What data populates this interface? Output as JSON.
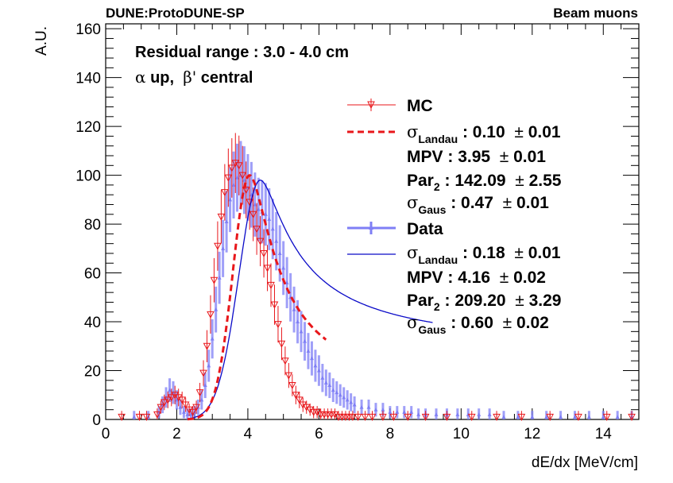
{
  "chart_data": {
    "type": "scatter",
    "header_left": "DUNE:ProtoDUNE-SP",
    "header_right": "Beam muons",
    "ylabel": "A.U.",
    "xlabel": "dE/dx [MeV/cm]",
    "xlim": [
      0,
      15
    ],
    "ylim": [
      0,
      162
    ],
    "grid": false,
    "x_ticks": [
      0,
      2,
      4,
      6,
      8,
      10,
      12,
      14
    ],
    "y_ticks": [
      0,
      20,
      40,
      60,
      80,
      100,
      120,
      140,
      160
    ],
    "annotations": {
      "line1": "Residual range : 3.0 - 4.0 cm",
      "line2_alpha": "α",
      "line2_up": " up,  ",
      "line2_beta": "β'",
      "line2_central": " central"
    },
    "legend": {
      "mc_label": "MC",
      "data_label": "Data",
      "sigma": "σ",
      "landau_sub": "Landau",
      "gaus_sub": "Gaus",
      "mpv": "MPV",
      "par": "Par",
      "par_sub": "2",
      "pm": "±",
      "mc_sigma_landau": "0.10",
      "mc_sigma_landau_err": "0.01",
      "mc_mpv": "3.95",
      "mc_mpv_err": "0.01",
      "mc_par2": "142.09",
      "mc_par2_err": "2.55",
      "mc_sigma_gaus": "0.47",
      "mc_sigma_gaus_err": "0.01",
      "data_sigma_landau": "0.18",
      "data_sigma_landau_err": "0.01",
      "data_mpv": "4.16",
      "data_mpv_err": "0.02",
      "data_par2": "209.20",
      "data_par2_err": "3.29",
      "data_sigma_gaus": "0.60",
      "data_sigma_gaus_err": "0.02"
    },
    "colors": {
      "mc": "#e8171b",
      "data": "#7f7ff5",
      "fit_data": "#0a0ac8",
      "axis": "#000000"
    },
    "series": [
      {
        "name": "MC",
        "x": [
          0.45,
          0.95,
          1.15,
          1.45,
          1.55,
          1.65,
          1.75,
          1.85,
          1.95,
          2.05,
          2.15,
          2.25,
          2.35,
          2.45,
          2.55,
          2.65,
          2.75,
          2.85,
          2.95,
          3.05,
          3.15,
          3.25,
          3.35,
          3.45,
          3.55,
          3.65,
          3.75,
          3.85,
          3.95,
          4.05,
          4.15,
          4.25,
          4.35,
          4.45,
          4.55,
          4.65,
          4.75,
          4.85,
          4.95,
          5.05,
          5.15,
          5.25,
          5.35,
          5.45,
          5.55,
          5.65,
          5.75,
          5.85,
          5.95,
          6.05,
          6.15,
          6.25,
          6.35,
          6.45,
          6.55,
          6.65,
          6.75,
          6.85,
          6.95,
          7.1,
          7.3,
          7.5,
          7.8,
          8.1,
          8.5,
          9.0,
          9.6,
          10.3,
          11.0,
          11.7,
          12.5,
          13.3,
          14.1,
          14.8
        ],
        "y": [
          1,
          1,
          1,
          2,
          5,
          7,
          8,
          9,
          10,
          9,
          8,
          6,
          4,
          3,
          5,
          11,
          19,
          30,
          43,
          57,
          71,
          83,
          93,
          99,
          103,
          105,
          104,
          100,
          94,
          89,
          84,
          78,
          73,
          68,
          62,
          55,
          47,
          39,
          31,
          24,
          18,
          14,
          10,
          8,
          6,
          5,
          4,
          3,
          3,
          2,
          2,
          2,
          2,
          2,
          1,
          1,
          1,
          1,
          1,
          1,
          1,
          1,
          1,
          1,
          1,
          1,
          1,
          1,
          1,
          1,
          1,
          1,
          1,
          1
        ]
      },
      {
        "name": "Data",
        "x": [
          0.8,
          1.2,
          1.5,
          1.6,
          1.7,
          1.8,
          1.9,
          2.0,
          2.1,
          2.2,
          2.3,
          2.4,
          2.5,
          2.6,
          2.7,
          2.8,
          2.9,
          3.0,
          3.1,
          3.2,
          3.3,
          3.4,
          3.5,
          3.6,
          3.7,
          3.8,
          3.9,
          4.0,
          4.1,
          4.2,
          4.3,
          4.4,
          4.5,
          4.6,
          4.7,
          4.8,
          4.9,
          5.0,
          5.1,
          5.2,
          5.3,
          5.4,
          5.5,
          5.6,
          5.7,
          5.8,
          5.9,
          6.0,
          6.1,
          6.2,
          6.3,
          6.4,
          6.5,
          6.6,
          6.7,
          6.8,
          6.9,
          7.0,
          7.2,
          7.4,
          7.6,
          7.8,
          8.0,
          8.2,
          8.4,
          8.6,
          8.8,
          9.0,
          9.3,
          9.6,
          9.9,
          10.2,
          10.5,
          10.8,
          11.2,
          11.6,
          12.0,
          12.4,
          12.8,
          13.2,
          13.6,
          14.0,
          14.4,
          14.8
        ],
        "y": [
          1,
          1,
          3,
          6,
          9,
          12,
          11,
          8,
          5,
          3,
          2,
          2,
          3,
          5,
          8,
          14,
          22,
          33,
          45,
          58,
          70,
          81,
          90,
          96,
          99,
          100,
          98,
          95,
          92,
          88,
          86,
          85,
          84,
          82,
          78,
          73,
          68,
          62,
          56,
          50,
          45,
          40,
          36,
          32,
          28,
          25,
          22,
          20,
          17,
          15,
          14,
          12,
          11,
          10,
          9,
          8,
          7,
          6,
          5,
          5,
          4,
          4,
          3,
          3,
          3,
          3,
          2,
          2,
          2,
          2,
          2,
          2,
          2,
          2,
          1,
          1,
          1,
          1,
          1,
          1,
          1,
          1,
          1,
          1
        ]
      }
    ],
    "fits": [
      {
        "name": "MC fit",
        "style": "dashed",
        "mpv": 3.95,
        "sigma_landau": 0.1,
        "sigma_gaus": 0.47,
        "peak": 100,
        "peak_x": 4.05,
        "tail": 0.45
      },
      {
        "name": "Data fit",
        "style": "solid",
        "mpv": 4.16,
        "sigma_landau": 0.18,
        "sigma_gaus": 0.6,
        "peak": 98,
        "peak_x": 4.35,
        "tail": 0.62
      }
    ]
  }
}
